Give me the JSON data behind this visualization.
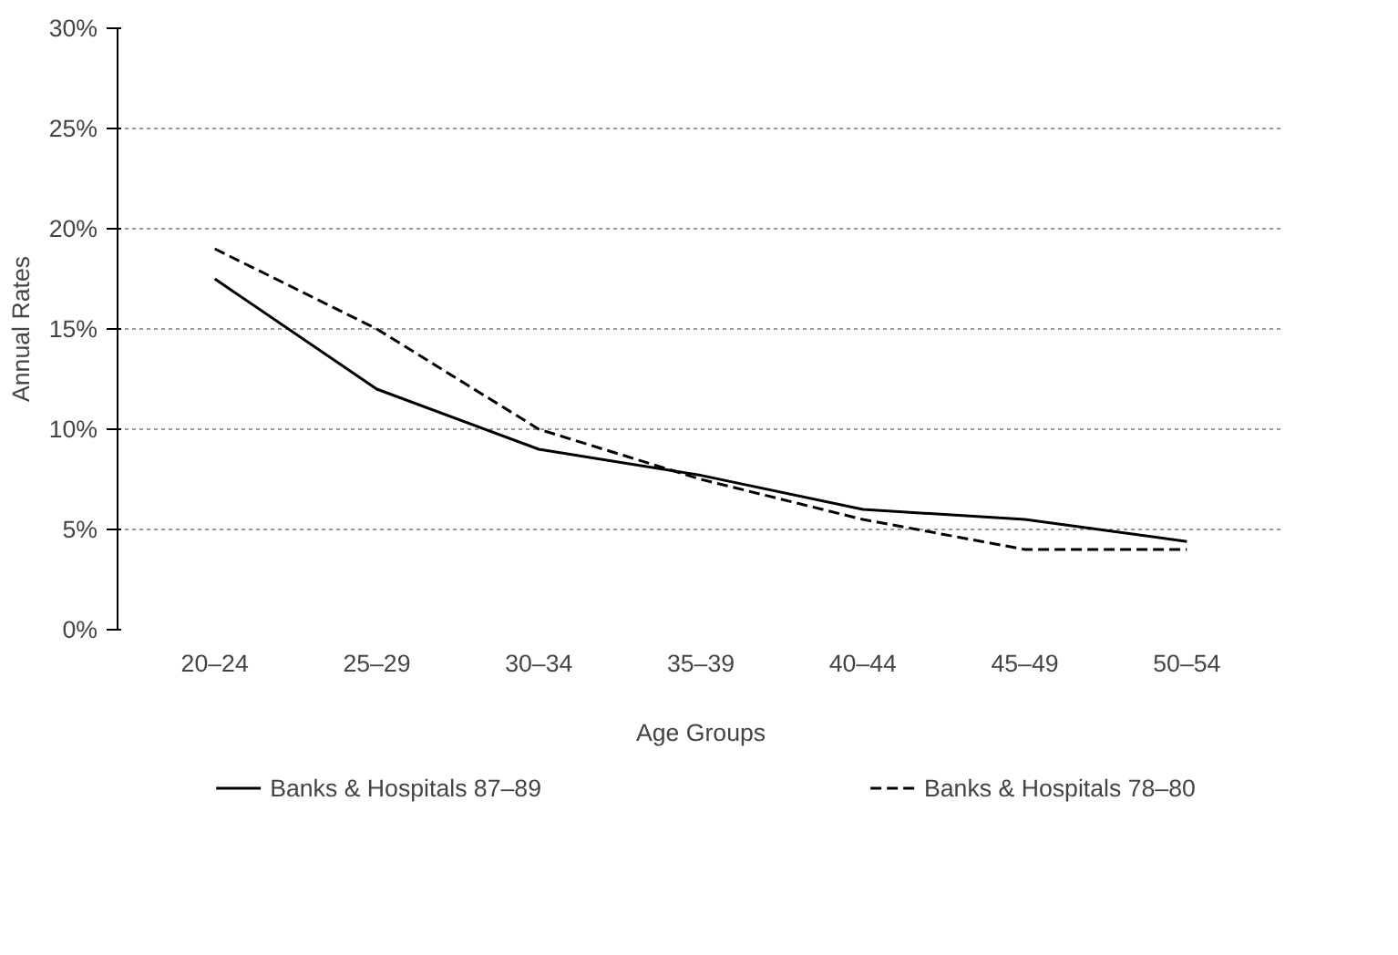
{
  "chart_data": {
    "type": "line",
    "xlabel": "Age Groups",
    "ylabel": "Annual Rates",
    "categories": [
      "20–24",
      "25–29",
      "30–34",
      "35–39",
      "40–44",
      "45–49",
      "50–54"
    ],
    "series": [
      {
        "name": "Banks & Hospitals 87–89",
        "color": "#000000",
        "line_style": "solid",
        "values": [
          17.5,
          12.0,
          9.0,
          7.7,
          6.0,
          5.5,
          4.4
        ]
      },
      {
        "name": "Banks & Hospitals 78–80",
        "color": "#000000",
        "line_style": "dashed",
        "values": [
          19.0,
          15.0,
          10.0,
          7.5,
          5.5,
          4.0,
          4.0
        ]
      }
    ],
    "ylim": [
      0,
      30
    ],
    "yticks": [
      {
        "value": 0,
        "label": "0%"
      },
      {
        "value": 5,
        "label": "5%"
      },
      {
        "value": 10,
        "label": "10%"
      },
      {
        "value": 15,
        "label": "15%"
      },
      {
        "value": 20,
        "label": "20%"
      },
      {
        "value": 25,
        "label": "25%"
      },
      {
        "value": 30,
        "label": "30%"
      }
    ],
    "grid": "y",
    "legend": "bottom",
    "marker": "none"
  }
}
